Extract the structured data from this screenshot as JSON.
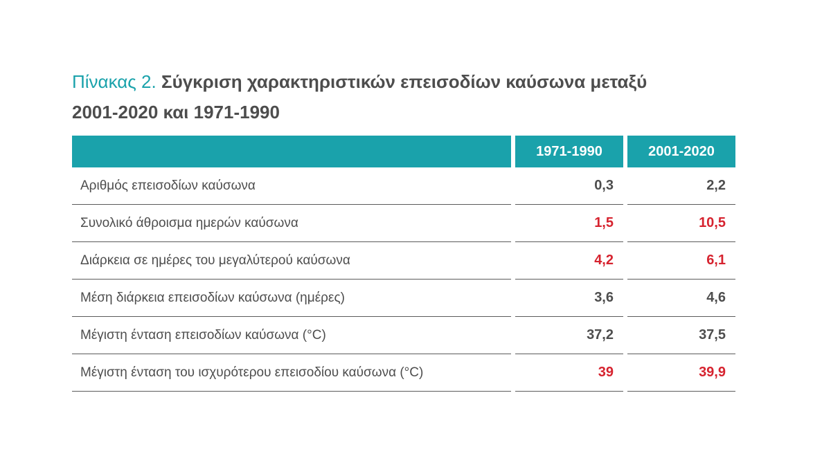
{
  "title": {
    "label": "Πίνακας 2.",
    "text_line1": "Σύγκριση χαρακτηριστικών επεισοδίων καύσωνα μεταξύ",
    "text_line2": "2001-2020 και 1971-1990"
  },
  "table": {
    "columns": [
      "1971-1990",
      "2001-2020"
    ],
    "rows": [
      {
        "label": "Αριθμός επεισοδίων καύσωνα",
        "v1": "0,3",
        "v2": "2,2",
        "highlight": false
      },
      {
        "label": "Συνολικό άθροισμα ημερών καύσωνα",
        "v1": "1,5",
        "v2": "10,5",
        "highlight": true
      },
      {
        "label": "Διάρκεια σε ημέρες του μεγαλύτερού καύσωνα",
        "v1": "4,2",
        "v2": "6,1",
        "highlight": true
      },
      {
        "label": "Μέση διάρκεια επεισοδίων καύσωνα (ημέρες)",
        "v1": "3,6",
        "v2": "4,6",
        "highlight": false
      },
      {
        "label": "Μέγιστη ένταση επεισοδίων καύσωνα (°C)",
        "v1": "37,2",
        "v2": "37,5",
        "highlight": false
      },
      {
        "label": "Μέγιστη ένταση του ισχυρότερου επεισοδίου καύσωνα (°C)",
        "v1": "39",
        "v2": "39,9",
        "highlight": true
      }
    ]
  },
  "colors": {
    "accent": "#1aa2ab",
    "highlight": "#d6232f",
    "text": "#4d4d4d"
  }
}
